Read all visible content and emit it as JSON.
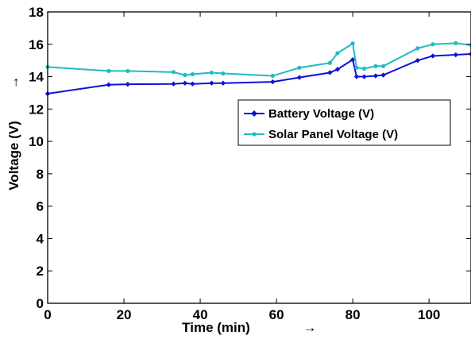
{
  "chart_data": {
    "type": "line",
    "title": "",
    "xlabel": "Time (min)",
    "ylabel": "Voltage (V)",
    "xlabel_arrow": "→",
    "ylabel_arrow": "→",
    "xlim": [
      0,
      111
    ],
    "ylim": [
      0,
      18
    ],
    "x_ticks": [
      0,
      20,
      40,
      60,
      80,
      100
    ],
    "y_ticks": [
      0,
      2,
      4,
      6,
      8,
      10,
      12,
      14,
      16,
      18
    ],
    "grid": false,
    "legend_position": "center-right",
    "series": [
      {
        "name": "Battery Voltage (V)",
        "color": "#1010d8",
        "marker": "diamond",
        "points": [
          [
            0,
            12.95
          ],
          [
            16,
            13.5
          ],
          [
            21,
            13.53
          ],
          [
            33,
            13.55
          ],
          [
            36,
            13.6
          ],
          [
            38,
            13.55
          ],
          [
            43,
            13.6
          ],
          [
            46,
            13.6
          ],
          [
            59,
            13.68
          ],
          [
            66,
            13.95
          ],
          [
            74,
            14.25
          ],
          [
            76,
            14.45
          ],
          [
            80,
            15.05
          ],
          [
            81,
            14.0
          ],
          [
            83,
            14.0
          ],
          [
            86,
            14.05
          ],
          [
            88,
            14.1
          ],
          [
            97,
            15.0
          ],
          [
            101,
            15.28
          ],
          [
            107,
            15.35
          ],
          [
            111,
            15.4
          ]
        ]
      },
      {
        "name": "Solar Panel Voltage (V)",
        "color": "#1fbcc4",
        "marker": "circle",
        "points": [
          [
            0,
            14.6
          ],
          [
            16,
            14.35
          ],
          [
            21,
            14.35
          ],
          [
            33,
            14.28
          ],
          [
            36,
            14.1
          ],
          [
            38,
            14.15
          ],
          [
            43,
            14.25
          ],
          [
            46,
            14.2
          ],
          [
            59,
            14.05
          ],
          [
            66,
            14.55
          ],
          [
            74,
            14.85
          ],
          [
            76,
            15.45
          ],
          [
            80,
            16.05
          ],
          [
            81,
            14.55
          ],
          [
            83,
            14.5
          ],
          [
            86,
            14.65
          ],
          [
            88,
            14.65
          ],
          [
            97,
            15.75
          ],
          [
            101,
            16.0
          ],
          [
            107,
            16.07
          ],
          [
            111,
            15.95
          ]
        ]
      }
    ]
  }
}
